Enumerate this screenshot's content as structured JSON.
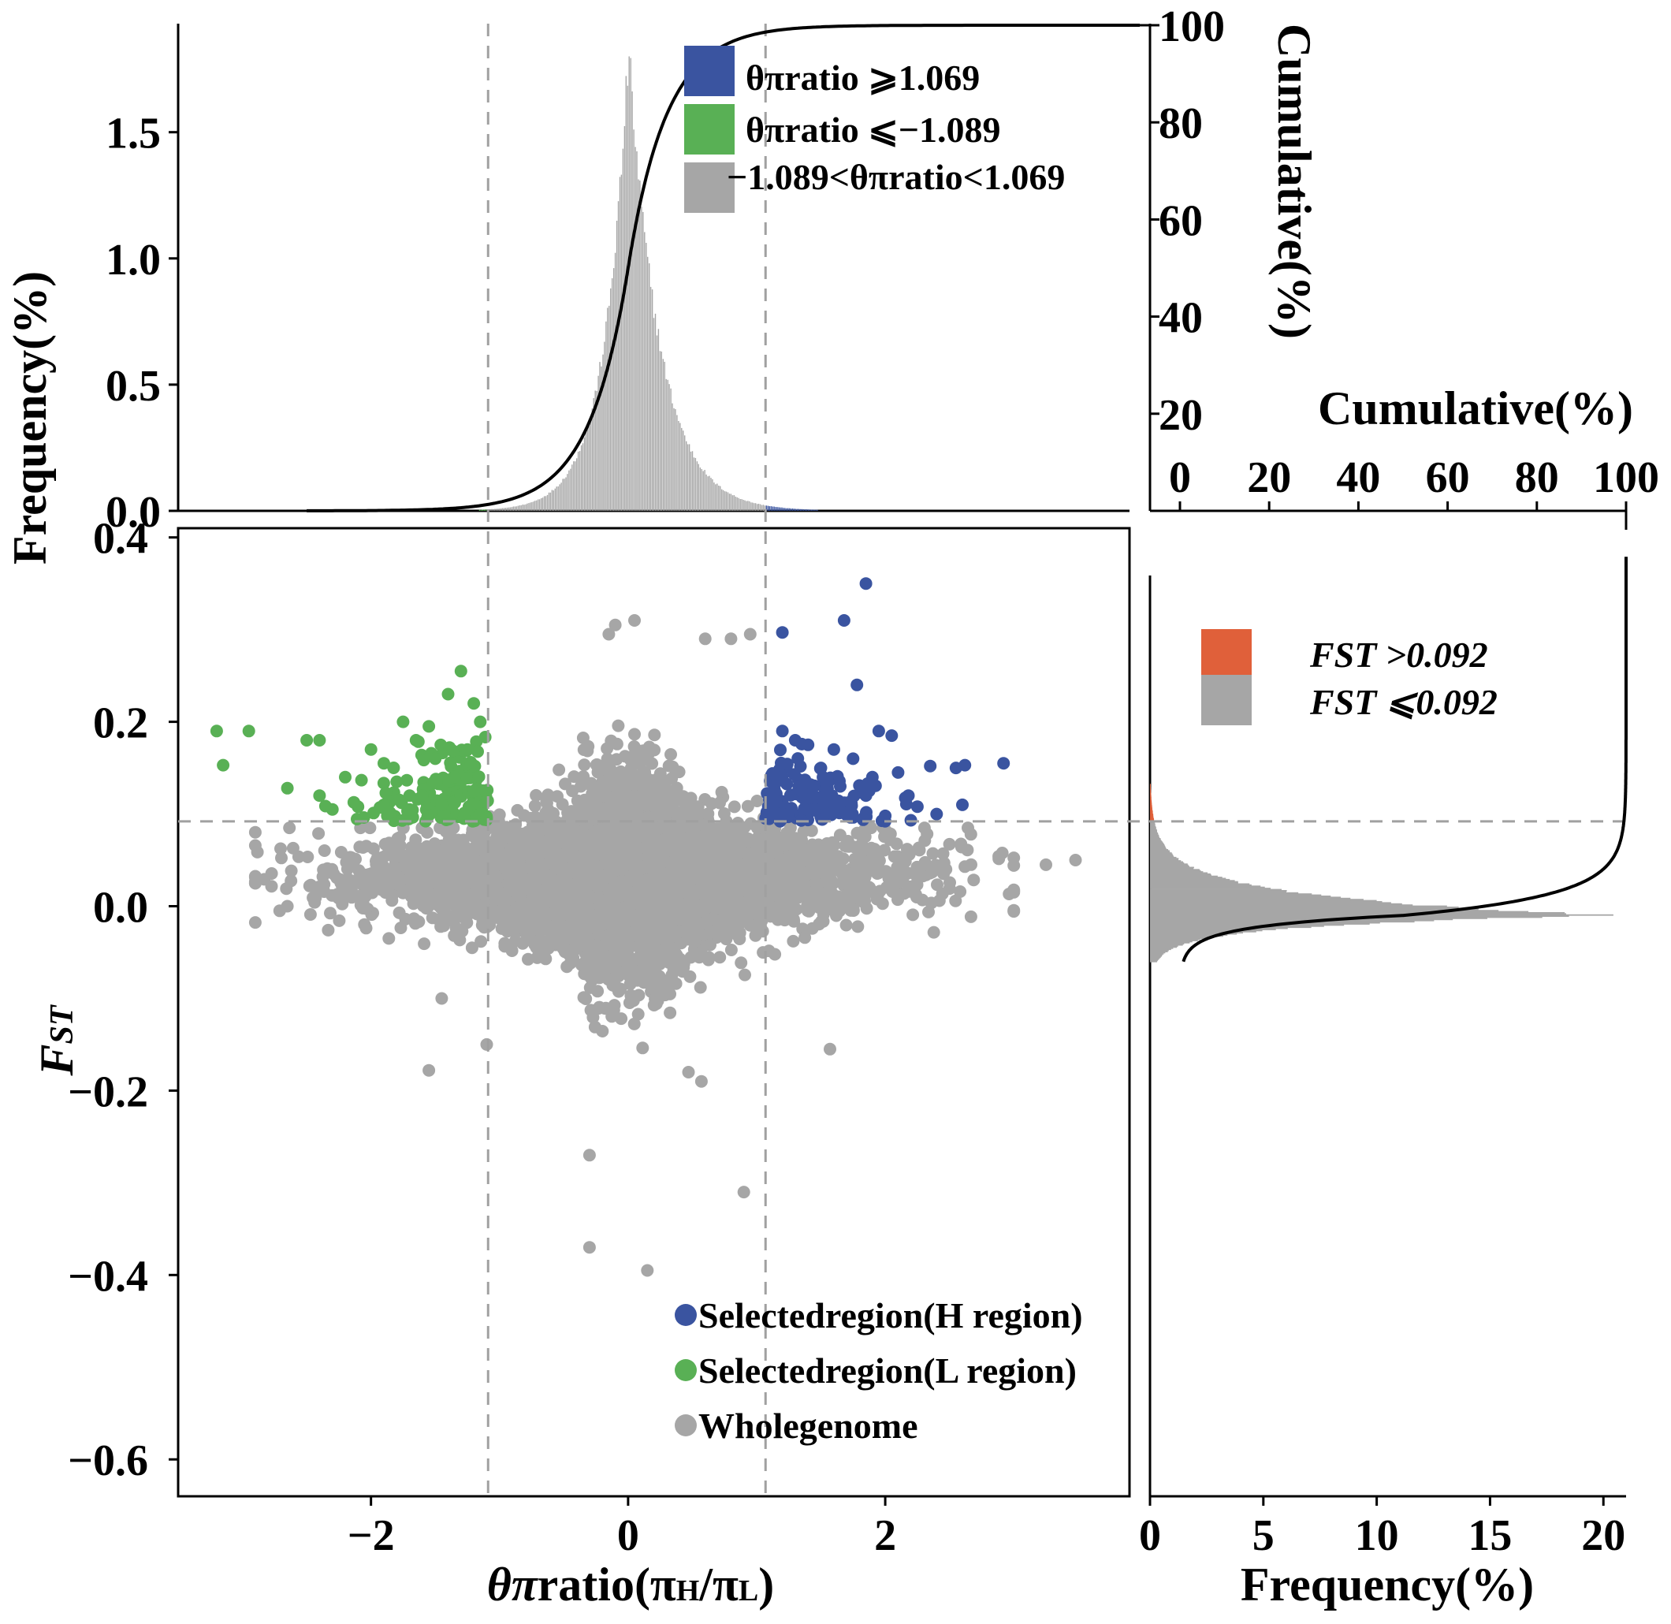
{
  "colors": {
    "high": "#3a54a0",
    "low": "#59b055",
    "genome": "#a6a6a6",
    "fst_high": "#e0603a",
    "fst_low": "#a6a6a6",
    "guide": "#a0a0a0",
    "cumulative": "#000000"
  },
  "chart_data": [
    {
      "id": "scatter",
      "type": "scatter",
      "xlabel": "θπratio(πH/πL)",
      "ylabel": "FST",
      "xlim": [
        -3.5,
        3.9
      ],
      "ylim": [
        -0.64,
        0.41
      ],
      "xticks": [
        -2,
        0,
        2
      ],
      "xtick_labels": [
        "−2",
        "0",
        "2"
      ],
      "yticks": [
        0.4,
        0.2,
        0.0,
        -0.2,
        -0.4,
        -0.6
      ],
      "ytick_labels": [
        "0.4",
        "0.2",
        "0.0",
        "−0.2",
        "−0.4",
        "−0.6"
      ],
      "thresholds": {
        "x_low": -1.089,
        "x_high": 1.069,
        "y": 0.092
      },
      "legend_position": "bottom-right",
      "legend": [
        "Selectedregion(H region)",
        "Selectedregion(L region)",
        "Wholegenome"
      ],
      "series": [
        {
          "name": "Selectedregion(H region)",
          "color": "#3a54a0",
          "points": [
            [
              1.85,
              0.35
            ],
            [
              1.68,
              0.31
            ],
            [
              1.2,
              0.297
            ],
            [
              1.78,
              0.24
            ],
            [
              2.92,
              0.155
            ],
            [
              2.62,
              0.153
            ],
            [
              2.55,
              0.15
            ],
            [
              2.35,
              0.152
            ],
            [
              2.6,
              0.11
            ],
            [
              2.4,
              0.1
            ],
            [
              2.25,
              0.108
            ],
            [
              2.1,
              0.145
            ],
            [
              2.18,
              0.12
            ],
            [
              1.95,
              0.19
            ],
            [
              2.05,
              0.185
            ],
            [
              1.6,
              0.17
            ],
            [
              1.4,
              0.175
            ],
            [
              1.2,
              0.19
            ],
            [
              1.3,
              0.18
            ],
            [
              1.75,
              0.16
            ],
            [
              1.5,
              0.15
            ],
            [
              1.9,
              0.14
            ],
            [
              1.65,
              0.13
            ],
            [
              1.2,
              0.14
            ],
            [
              1.35,
              0.125
            ],
            [
              1.85,
              0.12
            ],
            [
              1.55,
              0.115
            ],
            [
              1.45,
              0.105
            ],
            [
              2.0,
              0.098
            ],
            [
              1.25,
              0.1
            ],
            [
              1.7,
              0.102
            ]
          ]
        },
        {
          "name": "Selectedregion(L region)",
          "color": "#59b055",
          "points": [
            [
              -3.2,
              0.19
            ],
            [
              -2.95,
              0.19
            ],
            [
              -3.15,
              0.153
            ],
            [
              -2.5,
              0.18
            ],
            [
              -2.4,
              0.18
            ],
            [
              -2.65,
              0.128
            ],
            [
              -2.4,
              0.12
            ],
            [
              -2.2,
              0.14
            ],
            [
              -2.3,
              0.105
            ],
            [
              -2.0,
              0.17
            ],
            [
              -1.9,
              0.155
            ],
            [
              -1.75,
              0.2
            ],
            [
              -1.55,
              0.195
            ],
            [
              -1.4,
              0.23
            ],
            [
              -1.3,
              0.255
            ],
            [
              -1.2,
              0.22
            ],
            [
              -1.15,
              0.2
            ],
            [
              -1.65,
              0.18
            ],
            [
              -1.8,
              0.135
            ],
            [
              -1.5,
              0.16
            ],
            [
              -1.25,
              0.17
            ],
            [
              -1.35,
              0.14
            ],
            [
              -1.6,
              0.12
            ],
            [
              -1.7,
              0.105
            ],
            [
              -1.45,
              0.11
            ],
            [
              -1.2,
              0.125
            ],
            [
              -1.9,
              0.11
            ]
          ]
        },
        {
          "name": "Wholegenome",
          "color": "#a6a6a6",
          "extreme_points": [
            [
              -0.3,
              -0.27
            ],
            [
              -0.3,
              -0.37
            ],
            [
              0.15,
              -0.395
            ],
            [
              0.9,
              -0.31
            ],
            [
              -1.55,
              -0.178
            ],
            [
              0.47,
              -0.18
            ],
            [
              0.57,
              -0.19
            ],
            [
              1.57,
              -0.155
            ],
            [
              -1.1,
              -0.15
            ],
            [
              -1.45,
              -0.1
            ],
            [
              3.48,
              0.05
            ],
            [
              3.25,
              0.045
            ],
            [
              -2.65,
              0.0
            ],
            [
              0.6,
              0.29
            ],
            [
              0.05,
              0.31
            ],
            [
              -0.1,
              0.305
            ],
            [
              -0.15,
              0.295
            ],
            [
              0.95,
              0.295
            ],
            [
              0.8,
              0.29
            ]
          ]
        }
      ]
    },
    {
      "id": "top_histogram",
      "type": "bar",
      "ylabel": "Frequency(%)",
      "y2label": "Cumulative(%)",
      "yticks": [
        0.0,
        0.5,
        1.0,
        1.5
      ],
      "ytick_labels": [
        "0.0",
        "0.5",
        "1.0",
        "1.5"
      ],
      "ylim": [
        0,
        1.93
      ],
      "y2ticks": [
        20,
        40,
        60,
        80,
        100
      ],
      "y2tick_labels": [
        "20",
        "40",
        "60",
        "80",
        "100"
      ],
      "peak_x": 0.0,
      "peak_frequency": 1.92,
      "legend_position": "top-right",
      "legend": [
        "θπratio ⩾1.069",
        "θπratio ⩽−1.089",
        "−1.089<θπratio<1.069"
      ]
    },
    {
      "id": "right_histogram",
      "type": "bar",
      "xlabel": "Frequency(%)",
      "x2label": "Cumulative(%)",
      "xticks": [
        0,
        5,
        10,
        15,
        20
      ],
      "xtick_labels": [
        "0",
        "5",
        "10",
        "15",
        "20"
      ],
      "xlim": [
        0,
        21
      ],
      "x2ticks": [
        0,
        20,
        40,
        60,
        80,
        100
      ],
      "x2tick_labels": [
        "0",
        "20",
        "40",
        "60",
        "80",
        "100"
      ],
      "peak_fst": -0.01,
      "peak_frequency": 20.9,
      "legend_position": "top-right",
      "legend": [
        "FST >0.092",
        "FST ⩽0.092"
      ]
    }
  ]
}
